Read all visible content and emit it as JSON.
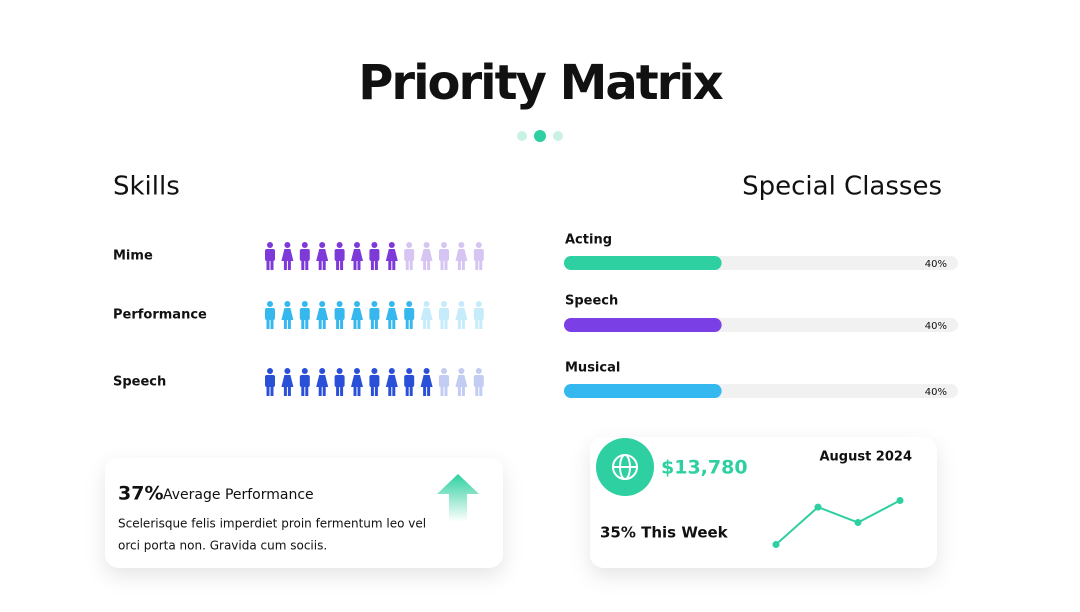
{
  "header": {
    "title": "Priority Matrix"
  },
  "skills": {
    "title": "Skills",
    "rows": [
      {
        "label": "Mime",
        "filled": 8,
        "total": 13,
        "color": "#7e3ad8",
        "light": "#d6c5f3"
      },
      {
        "label": "Performance",
        "filled": 9,
        "total": 13,
        "color": "#36b8ee",
        "light": "#c6ebfb"
      },
      {
        "label": "Speech",
        "filled": 10,
        "total": 13,
        "color": "#2a50d8",
        "light": "#c3ccf3"
      }
    ]
  },
  "special_classes": {
    "title": "Special Classes",
    "max": 100,
    "bars": [
      {
        "label": "Acting",
        "value": 40,
        "value_label": "40%",
        "color": "#2ecfa0"
      },
      {
        "label": "Speech",
        "value": 40,
        "value_label": "40%",
        "color": "#7b3fe6"
      },
      {
        "label": "Musical",
        "value": 40,
        "value_label": "40%",
        "color": "#35b8f0"
      }
    ]
  },
  "summary": {
    "percent": "37%",
    "label": "Average Performance",
    "text": [
      "Scelerisque felis imperdiet proin fermentum leo vel",
      "orci porta non. Gravida cum sociis."
    ]
  },
  "finance": {
    "amount": "$13,780",
    "date": "August 2024",
    "week": "35% This Week",
    "trend": {
      "values": [
        5,
        39,
        25,
        45
      ],
      "ylim": [
        0,
        50
      ],
      "color": "#2ecfa0"
    }
  }
}
